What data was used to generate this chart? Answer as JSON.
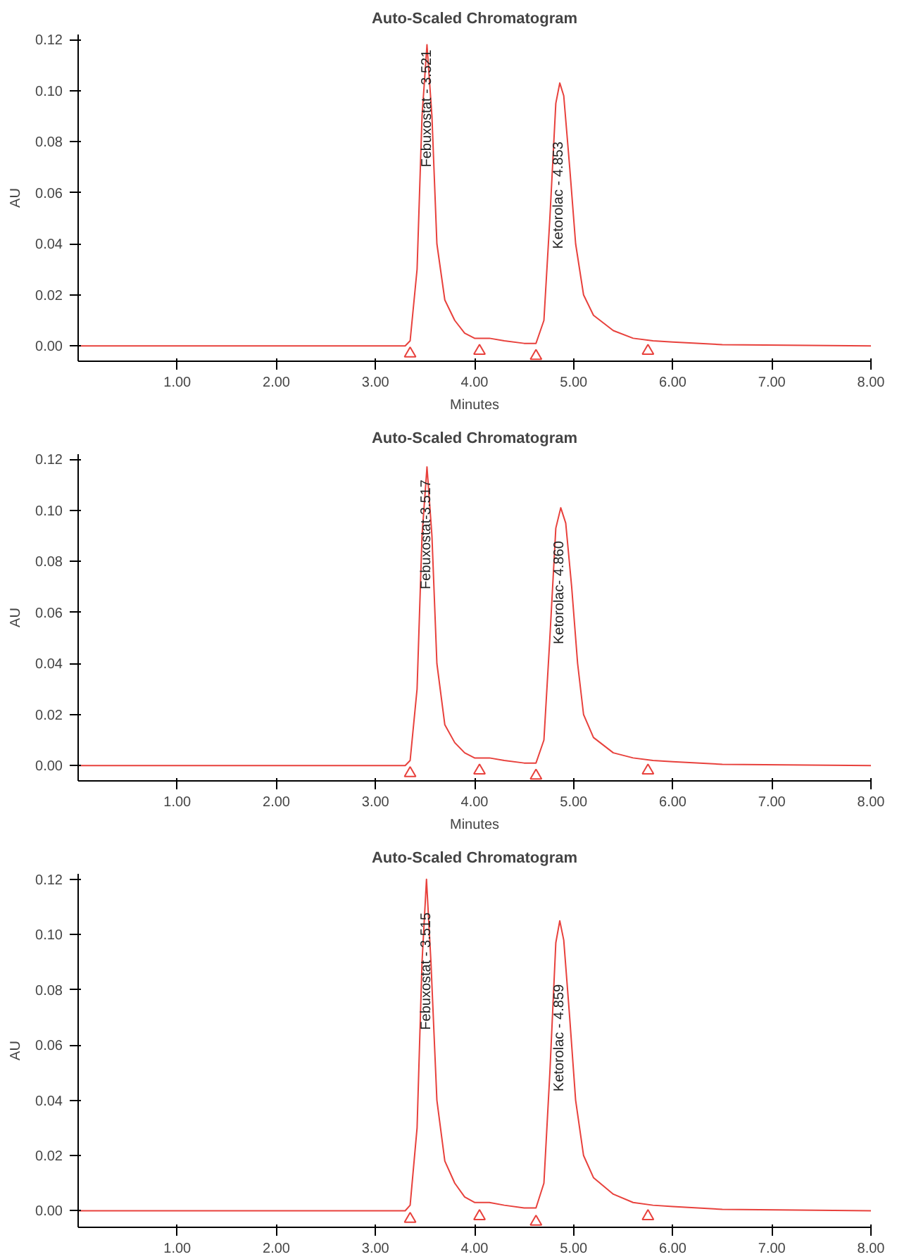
{
  "chart_data": [
    {
      "type": "line",
      "title": "Auto-Scaled Chromatogram",
      "xlabel": "Minutes",
      "ylabel": "AU",
      "xlim": [
        0,
        8.0
      ],
      "ylim": [
        -0.006,
        0.122
      ],
      "xticks": [
        {
          "value": 1,
          "label": "1.00"
        },
        {
          "value": 2,
          "label": "2.00"
        },
        {
          "value": 3,
          "label": "3.00"
        },
        {
          "value": 4,
          "label": "4.00"
        },
        {
          "value": 5,
          "label": "5.00"
        },
        {
          "value": 6,
          "label": "6.00"
        },
        {
          "value": 7,
          "label": "7.00"
        },
        {
          "value": 8,
          "label": "8.00"
        }
      ],
      "yticks": [
        {
          "value": 0,
          "label": "0.00"
        },
        {
          "value": 0.02,
          "label": "0.02"
        },
        {
          "value": 0.04,
          "label": "0.04"
        },
        {
          "value": 0.06,
          "label": "0.06"
        },
        {
          "value": 0.08,
          "label": "0.08"
        },
        {
          "value": 0.1,
          "label": "0.10"
        },
        {
          "value": 0.12,
          "label": "0.12"
        }
      ],
      "grid": false,
      "line_style": "solid",
      "series": [
        {
          "color": "#e8413c",
          "x": [
            0,
            1,
            2,
            3,
            3.3,
            3.35,
            3.42,
            3.47,
            3.52,
            3.57,
            3.62,
            3.7,
            3.8,
            3.9,
            4.0,
            4.15,
            4.3,
            4.5,
            4.62,
            4.7,
            4.76,
            4.82,
            4.86,
            4.9,
            4.96,
            5.02,
            5.1,
            5.2,
            5.4,
            5.6,
            5.8,
            6.0,
            6.5,
            8
          ],
          "values": [
            0,
            0,
            0,
            0,
            0,
            0.002,
            0.03,
            0.09,
            0.118,
            0.09,
            0.04,
            0.018,
            0.01,
            0.005,
            0.003,
            0.003,
            0.002,
            0.001,
            0.001,
            0.01,
            0.05,
            0.095,
            0.103,
            0.098,
            0.07,
            0.04,
            0.02,
            0.012,
            0.006,
            0.003,
            0.002,
            0.0015,
            0.0005,
            0
          ]
        },
        {
          "type": "scatter",
          "marker": "triangle",
          "color": "#e8413c",
          "x": [
            3.35,
            4.05,
            4.62,
            5.75
          ],
          "values": [
            -0.003,
            -0.002,
            -0.004,
            -0.002
          ]
        }
      ],
      "annotations": [
        {
          "text": "Febuxostat - 3.521",
          "x": 3.521,
          "y": 0.116
        },
        {
          "text": "Ketorolac - 4.853",
          "x": 4.853,
          "y": 0.08
        }
      ]
    },
    {
      "type": "line",
      "title": "Auto-Scaled Chromatogram",
      "xlabel": "Minutes",
      "ylabel": "AU",
      "xlim": [
        0,
        8.0
      ],
      "ylim": [
        -0.006,
        0.122
      ],
      "xticks": [
        {
          "value": 1,
          "label": "1.00"
        },
        {
          "value": 2,
          "label": "2.00"
        },
        {
          "value": 3,
          "label": "3.00"
        },
        {
          "value": 4,
          "label": "4.00"
        },
        {
          "value": 5,
          "label": "5.00"
        },
        {
          "value": 6,
          "label": "6.00"
        },
        {
          "value": 7,
          "label": "7.00"
        },
        {
          "value": 8,
          "label": "8.00"
        }
      ],
      "yticks": [
        {
          "value": 0,
          "label": "0.00"
        },
        {
          "value": 0.02,
          "label": "0.02"
        },
        {
          "value": 0.04,
          "label": "0.04"
        },
        {
          "value": 0.06,
          "label": "0.06"
        },
        {
          "value": 0.08,
          "label": "0.08"
        },
        {
          "value": 0.1,
          "label": "0.10"
        },
        {
          "value": 0.12,
          "label": "0.12"
        }
      ],
      "grid": false,
      "line_style": "solid",
      "series": [
        {
          "color": "#e8413c",
          "x": [
            0,
            1,
            2,
            3,
            3.3,
            3.35,
            3.42,
            3.47,
            3.52,
            3.57,
            3.62,
            3.7,
            3.8,
            3.9,
            4.0,
            4.15,
            4.3,
            4.5,
            4.62,
            4.7,
            4.76,
            4.82,
            4.87,
            4.92,
            4.98,
            5.04,
            5.1,
            5.2,
            5.4,
            5.6,
            5.8,
            6.0,
            6.5,
            8
          ],
          "values": [
            0,
            0,
            0,
            0,
            0,
            0.002,
            0.03,
            0.09,
            0.117,
            0.09,
            0.04,
            0.016,
            0.009,
            0.005,
            0.003,
            0.003,
            0.002,
            0.001,
            0.001,
            0.01,
            0.05,
            0.093,
            0.101,
            0.095,
            0.07,
            0.04,
            0.02,
            0.011,
            0.005,
            0.003,
            0.002,
            0.0015,
            0.0005,
            0
          ]
        },
        {
          "type": "scatter",
          "marker": "triangle",
          "color": "#e8413c",
          "x": [
            3.35,
            4.05,
            4.62,
            5.75
          ],
          "values": [
            -0.003,
            -0.002,
            -0.004,
            -0.002
          ]
        }
      ],
      "annotations": [
        {
          "text": "Febuxostat-3.517",
          "x": 3.517,
          "y": 0.112
        },
        {
          "text": "Ketorolac- 4.860",
          "x": 4.86,
          "y": 0.088
        }
      ]
    },
    {
      "type": "line",
      "title": "Auto-Scaled Chromatogram",
      "ylabel": "AU",
      "xlim": [
        0,
        8.0
      ],
      "ylim": [
        -0.006,
        0.122
      ],
      "xticks": [
        {
          "value": 1,
          "label": "1.00"
        },
        {
          "value": 2,
          "label": "2.00"
        },
        {
          "value": 3,
          "label": "3.00"
        },
        {
          "value": 4,
          "label": "4.00"
        },
        {
          "value": 5,
          "label": "5.00"
        },
        {
          "value": 6,
          "label": "6.00"
        },
        {
          "value": 7,
          "label": "7.00"
        },
        {
          "value": 8,
          "label": "8.00"
        }
      ],
      "yticks": [
        {
          "value": 0,
          "label": "0.00"
        },
        {
          "value": 0.02,
          "label": "0.02"
        },
        {
          "value": 0.04,
          "label": "0.04"
        },
        {
          "value": 0.06,
          "label": "0.06"
        },
        {
          "value": 0.08,
          "label": "0.08"
        },
        {
          "value": 0.1,
          "label": "0.10"
        },
        {
          "value": 0.12,
          "label": "0.12"
        }
      ],
      "grid": false,
      "line_style": "solid",
      "series": [
        {
          "color": "#e8413c",
          "x": [
            0,
            1,
            2,
            3,
            3.3,
            3.35,
            3.42,
            3.47,
            3.515,
            3.56,
            3.62,
            3.7,
            3.8,
            3.9,
            4.0,
            4.15,
            4.3,
            4.5,
            4.62,
            4.7,
            4.76,
            4.82,
            4.86,
            4.9,
            4.96,
            5.02,
            5.1,
            5.2,
            5.4,
            5.6,
            5.8,
            6.0,
            6.5,
            8
          ],
          "values": [
            0,
            0,
            0,
            0,
            0,
            0.002,
            0.03,
            0.09,
            0.12,
            0.09,
            0.04,
            0.018,
            0.01,
            0.005,
            0.003,
            0.003,
            0.002,
            0.001,
            0.001,
            0.01,
            0.05,
            0.097,
            0.105,
            0.098,
            0.07,
            0.04,
            0.02,
            0.012,
            0.006,
            0.003,
            0.002,
            0.0015,
            0.0005,
            0
          ]
        },
        {
          "type": "scatter",
          "marker": "triangle",
          "color": "#e8413c",
          "x": [
            3.35,
            4.05,
            4.62,
            5.75
          ],
          "values": [
            -0.003,
            -0.002,
            -0.004,
            -0.002
          ]
        }
      ],
      "annotations": [
        {
          "text": "Febuxostat - 3.515",
          "x": 3.515,
          "y": 0.108
        },
        {
          "text": "Ketorolac - 4.859",
          "x": 4.859,
          "y": 0.082
        }
      ]
    }
  ]
}
